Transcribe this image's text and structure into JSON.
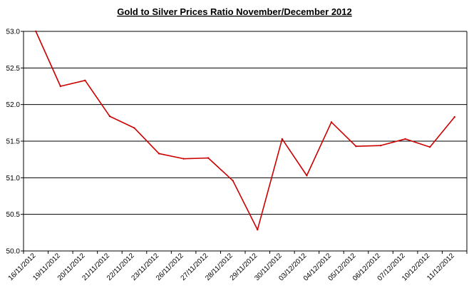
{
  "chart_data": {
    "type": "line",
    "title": "Gold to Silver Prices Ratio November/December 2012",
    "xlabel": "",
    "ylabel": "",
    "ylim": [
      50.0,
      53.0
    ],
    "yticks": [
      "50.0",
      "50.5",
      "51.0",
      "51.5",
      "52.0",
      "52.5",
      "53.0"
    ],
    "grid": "horizontal",
    "legend": "none",
    "categories": [
      "16/11/2012",
      "19/11/2012",
      "20/11/2012",
      "21/11/2012",
      "22/11/2012",
      "23/11/2012",
      "26/11/2012",
      "27/11/2012",
      "28/11/2012",
      "29/11/2012",
      "30/11/2012",
      "03/12/2012",
      "04/12/2012",
      "05/12/2012",
      "06/12/2012",
      "07/12/2012",
      "10/12/2012",
      "11/12/2012"
    ],
    "series": [
      {
        "values": [
          53.0,
          52.25,
          52.33,
          51.84,
          51.68,
          51.33,
          51.26,
          51.27,
          50.96,
          50.29,
          51.53,
          51.03,
          51.76,
          51.43,
          51.44,
          51.53,
          51.42,
          51.83
        ],
        "color": "#cc0000"
      }
    ]
  }
}
